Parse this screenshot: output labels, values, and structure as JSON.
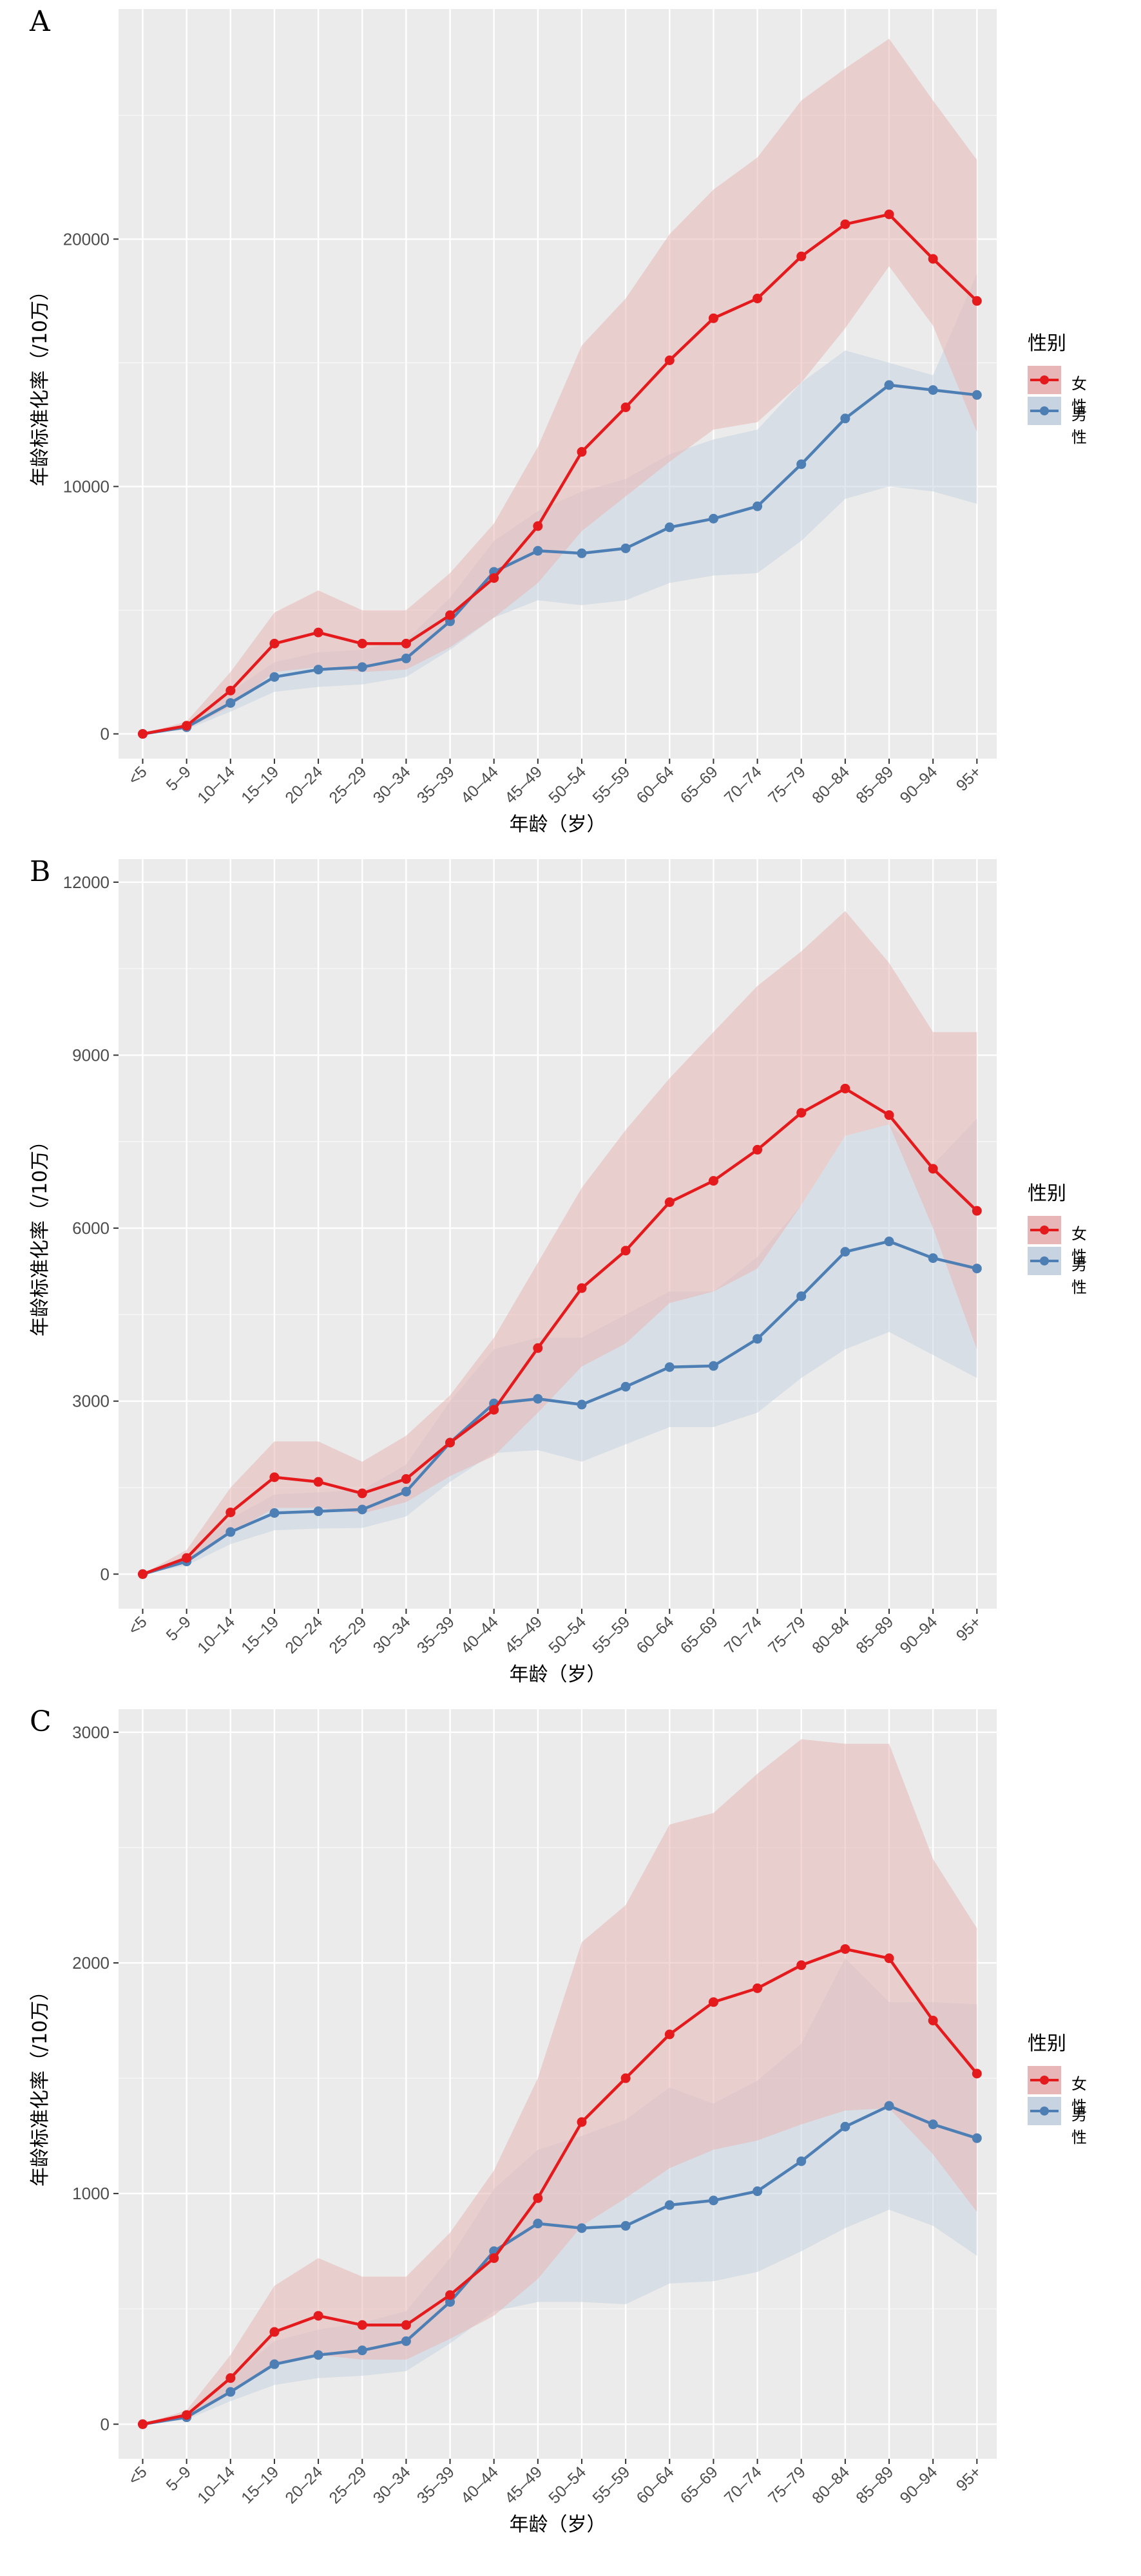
{
  "legend": {
    "title": "性别",
    "female": "女性",
    "male": "男性"
  },
  "colors": {
    "female": "#E41A1C",
    "male": "#4E7FB4",
    "female_band": "#E8B6B6",
    "male_band": "#C7D3E0",
    "panel_bg": "#EBEBEB",
    "grid": "#FFFFFF",
    "axis_text": "#4D4D4D"
  },
  "panels": [
    {
      "letter": "A",
      "xlabel": "年龄（岁）",
      "ylabel": "年龄标准化率（/10万）"
    },
    {
      "letter": "B",
      "xlabel": "年龄（岁）",
      "ylabel": "年龄标准化率（/10万）"
    },
    {
      "letter": "C",
      "xlabel": "年龄（岁）",
      "ylabel": "年龄标准化率（/10万）"
    }
  ],
  "chart_data": [
    {
      "type": "line",
      "categories": [
        "<5",
        "5–9",
        "10–14",
        "15–19",
        "20–24",
        "25–29",
        "30–34",
        "35–39",
        "40–44",
        "45–49",
        "50–54",
        "55–59",
        "60–64",
        "65–69",
        "70–74",
        "75–79",
        "80–84",
        "85–89",
        "90–94",
        "95+"
      ],
      "ylim": [
        -1000,
        29300
      ],
      "yticks": [
        0,
        10000,
        20000
      ],
      "ytick_labels": [
        "0",
        "10000",
        "20000"
      ],
      "grid": true,
      "legend_position": "right",
      "series": [
        {
          "name": "女性",
          "values": [
            0,
            330,
            1750,
            3650,
            4100,
            3650,
            3650,
            4800,
            6300,
            8400,
            11400,
            13200,
            15100,
            16800,
            17600,
            19300,
            20600,
            21000,
            19200,
            17500
          ],
          "lower": [
            0,
            200,
            1100,
            2500,
            2700,
            2500,
            2600,
            3500,
            4700,
            6100,
            8200,
            9600,
            11000,
            12300,
            12600,
            14200,
            16400,
            18900,
            16500,
            12200
          ],
          "upper": [
            0,
            500,
            2500,
            4900,
            5800,
            5000,
            5000,
            6500,
            8500,
            11600,
            15700,
            17600,
            20200,
            22000,
            23300,
            25600,
            26900,
            28100,
            25600,
            23200
          ]
        },
        {
          "name": "男性",
          "values": [
            0,
            270,
            1250,
            2300,
            2600,
            2700,
            3050,
            4550,
            6550,
            7400,
            7300,
            7500,
            8350,
            8700,
            9200,
            10900,
            12750,
            14100,
            13900,
            13700
          ],
          "lower": [
            0,
            180,
            900,
            1700,
            1900,
            2000,
            2300,
            3400,
            4700,
            5400,
            5200,
            5400,
            6100,
            6400,
            6500,
            7800,
            9500,
            10000,
            9800,
            9300
          ],
          "upper": [
            0,
            400,
            1700,
            2900,
            3300,
            3400,
            3800,
            5500,
            7800,
            9000,
            9800,
            10300,
            11300,
            11900,
            12300,
            14200,
            15500,
            15000,
            14500,
            18600
          ]
        }
      ]
    },
    {
      "type": "line",
      "categories": [
        "<5",
        "5–9",
        "10–14",
        "15–19",
        "20–24",
        "25–29",
        "30–34",
        "35–39",
        "40–44",
        "45–49",
        "50–54",
        "55–59",
        "60–64",
        "65–69",
        "70–74",
        "75–79",
        "80–84",
        "85–89",
        "90–94",
        "95+"
      ],
      "ylim": [
        -600,
        12400
      ],
      "yticks": [
        0,
        3000,
        6000,
        9000,
        12000
      ],
      "ytick_labels": [
        "0",
        "3000",
        "6000",
        "9000",
        "12000"
      ],
      "grid": true,
      "legend_position": "right",
      "series": [
        {
          "name": "女性",
          "values": [
            0,
            280,
            1070,
            1680,
            1600,
            1400,
            1650,
            2280,
            2850,
            3920,
            4960,
            5610,
            6450,
            6820,
            7360,
            8000,
            8420,
            7960,
            7030,
            6300
          ],
          "lower": [
            0,
            180,
            700,
            1150,
            1150,
            1050,
            1250,
            1700,
            2050,
            2800,
            3600,
            4000,
            4700,
            4900,
            5300,
            6400,
            7600,
            7800,
            6000,
            3900
          ],
          "upper": [
            0,
            420,
            1500,
            2300,
            2300,
            1950,
            2400,
            3100,
            4100,
            5400,
            6700,
            7700,
            8600,
            9400,
            10200,
            10800,
            11500,
            10600,
            9400,
            9400
          ]
        },
        {
          "name": "男性",
          "values": [
            0,
            220,
            730,
            1060,
            1090,
            1120,
            1430,
            2280,
            2960,
            3040,
            2940,
            3250,
            3590,
            3610,
            4080,
            4820,
            5590,
            5770,
            5480,
            5300
          ],
          "lower": [
            0,
            150,
            520,
            760,
            790,
            800,
            1000,
            1600,
            2100,
            2150,
            1950,
            2250,
            2550,
            2550,
            2800,
            3400,
            3900,
            4200,
            3800,
            3400
          ],
          "upper": [
            0,
            320,
            960,
            1380,
            1420,
            1460,
            1900,
            3000,
            3900,
            4100,
            4100,
            4500,
            4900,
            4900,
            5500,
            6400,
            7600,
            7800,
            7100,
            7900
          ]
        }
      ]
    },
    {
      "type": "line",
      "categories": [
        "<5",
        "5–9",
        "10–14",
        "15–19",
        "20–24",
        "25–29",
        "30–34",
        "35–39",
        "40–44",
        "45–49",
        "50–54",
        "55–59",
        "60–64",
        "65–69",
        "70–74",
        "75–79",
        "80–84",
        "85–89",
        "90–94",
        "95+"
      ],
      "ylim": [
        -150,
        3100
      ],
      "yticks": [
        0,
        1000,
        2000,
        3000
      ],
      "ytick_labels": [
        "0",
        "1000",
        "2000",
        "3000"
      ],
      "grid": true,
      "legend_position": "right",
      "series": [
        {
          "name": "女性",
          "values": [
            0,
            40,
            200,
            400,
            470,
            430,
            430,
            560,
            720,
            980,
            1310,
            1500,
            1690,
            1830,
            1890,
            1990,
            2060,
            2020,
            1750,
            1520
          ],
          "lower": [
            0,
            25,
            130,
            260,
            300,
            280,
            280,
            370,
            470,
            630,
            860,
            980,
            1110,
            1190,
            1230,
            1300,
            1360,
            1370,
            1170,
            920
          ],
          "upper": [
            0,
            60,
            300,
            600,
            720,
            640,
            640,
            830,
            1100,
            1500,
            2090,
            2250,
            2600,
            2650,
            2820,
            2970,
            2950,
            2950,
            2450,
            2150
          ]
        },
        {
          "name": "男性",
          "values": [
            0,
            30,
            140,
            260,
            300,
            320,
            360,
            530,
            750,
            870,
            850,
            860,
            950,
            970,
            1010,
            1140,
            1290,
            1380,
            1300,
            1240
          ],
          "lower": [
            0,
            20,
            100,
            170,
            200,
            210,
            230,
            350,
            490,
            530,
            530,
            520,
            610,
            620,
            660,
            750,
            850,
            930,
            860,
            730
          ],
          "upper": [
            0,
            45,
            200,
            360,
            410,
            440,
            490,
            720,
            1020,
            1190,
            1250,
            1320,
            1460,
            1390,
            1490,
            1650,
            2020,
            1830,
            1830,
            1820
          ]
        }
      ]
    }
  ]
}
